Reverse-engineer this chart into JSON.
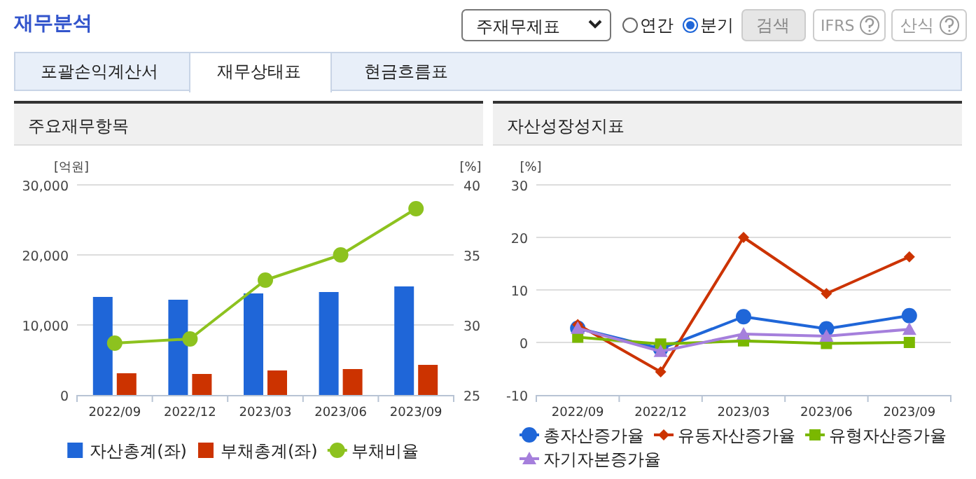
{
  "chart_data": [
    {
      "type": "bar",
      "title": "주요재무항목",
      "ylabel": "[억원]",
      "y2label": "[%]",
      "categories": [
        "2022/09",
        "2022/12",
        "2023/03",
        "2023/06",
        "2023/09"
      ],
      "series": [
        {
          "name": "자산총계(좌)",
          "color": "#1f66d8",
          "values": [
            14000,
            13600,
            14500,
            14700,
            15500
          ]
        },
        {
          "name": "부채총계(좌)",
          "color": "#cc3300",
          "values": [
            3100,
            3000,
            3500,
            3700,
            4300
          ]
        },
        {
          "name": "부채비율",
          "type": "line",
          "axis": "y2",
          "marker": "circle",
          "color": "#8dc21f",
          "values": [
            28.7,
            29.0,
            33.2,
            35.0,
            38.3
          ]
        }
      ],
      "ylim": [
        0,
        30000
      ],
      "yticks": [
        0,
        {
          "value": 10000,
          "label": "10,000"
        },
        {
          "value": 20000,
          "label": "20,000"
        },
        {
          "value": 30000,
          "label": "30,000"
        }
      ],
      "y2lim": [
        25,
        40
      ],
      "y2ticks": [
        25,
        30,
        35,
        40
      ],
      "grid": "y",
      "legend": "bottom",
      "annotations": [
        "재무분석",
        "주재무제표",
        "연간",
        "분기",
        "검색",
        "IFRS",
        "산식",
        "포괄손익계산서",
        "재무상태표",
        "현금흐름표"
      ]
    },
    {
      "type": "line",
      "title": "자산성장성지표",
      "ylabel": "[%]",
      "categories": [
        "2022/09",
        "2022/12",
        "2023/03",
        "2023/06",
        "2023/09"
      ],
      "series": [
        {
          "name": "총자산증가율",
          "color": "#1f66d8",
          "marker": "circle",
          "values": [
            2.7,
            -1.2,
            4.9,
            2.6,
            5.1
          ]
        },
        {
          "name": "유동자산증가율",
          "color": "#cc3300",
          "marker": "diamond",
          "values": [
            3.4,
            -5.6,
            20.0,
            9.3,
            16.3
          ]
        },
        {
          "name": "유형자산증가율",
          "color": "#7ab800",
          "marker": "square",
          "values": [
            1.0,
            -0.3,
            0.3,
            -0.2,
            0.0
          ]
        },
        {
          "name": "자기자본증가율",
          "color": "#a57fdc",
          "marker": "triangle",
          "values": [
            2.7,
            -1.7,
            1.6,
            1.2,
            2.5
          ]
        }
      ],
      "ylim": [
        -10,
        30
      ],
      "yticks": [
        -10,
        0,
        10,
        20,
        30
      ],
      "grid": "y",
      "legend": "bottom"
    }
  ]
}
